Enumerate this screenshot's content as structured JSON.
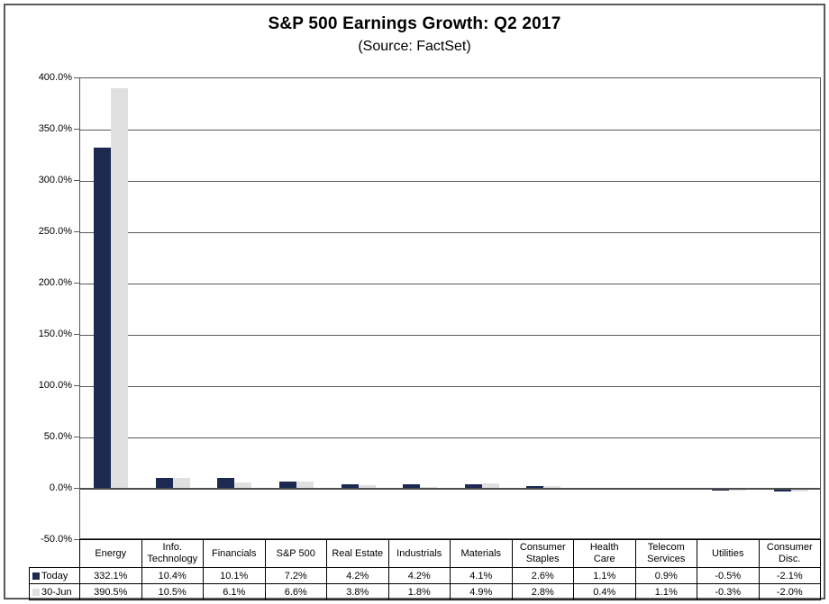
{
  "header": {
    "title": "S&P 500 Earnings Growth: Q2 2017",
    "subtitle": "(Source: FactSet)"
  },
  "colors": {
    "today_bar": "#1C2A52",
    "jun30_bar": "#E0E0E0",
    "gridline": "#595959",
    "zero_axis": "#4d4d4d",
    "table_border": "#000000",
    "frame_border": "#595959"
  },
  "chart_data": {
    "type": "bar",
    "title": "S&P 500 Earnings Growth: Q2 2017",
    "subtitle": "(Source: FactSet)",
    "categories": [
      "Energy",
      "Info. Technology",
      "Financials",
      "S&P 500",
      "Real Estate",
      "Industrials",
      "Materials",
      "Consumer Staples",
      "Health Care",
      "Telecom Services",
      "Utilities",
      "Consumer Disc."
    ],
    "series": [
      {
        "name": "Today",
        "color": "#1C2A52",
        "values": [
          332.1,
          10.4,
          10.1,
          7.2,
          4.2,
          4.2,
          4.1,
          2.6,
          1.1,
          0.9,
          -0.5,
          -2.1
        ]
      },
      {
        "name": "30-Jun",
        "color": "#E0E0E0",
        "values": [
          390.5,
          10.5,
          6.1,
          6.6,
          3.8,
          1.8,
          4.9,
          2.8,
          0.4,
          1.1,
          -0.3,
          -2.0
        ]
      }
    ],
    "ylim": [
      -50,
      400
    ],
    "ytick_step": 50,
    "ytick_labels": [
      "400.0%",
      "350.0%",
      "300.0%",
      "250.0%",
      "200.0%",
      "150.0%",
      "100.0%",
      "50.0%",
      "0.0%",
      "-50.0%"
    ],
    "grid": true,
    "legend_position": "data-table-left",
    "xlabel": "",
    "ylabel": ""
  },
  "table": {
    "header": [
      "Energy",
      "Info.\nTechnology",
      "Financials",
      "S&P 500",
      "Real Estate",
      "Industrials",
      "Materials",
      "Consumer\nStaples",
      "Health\nCare",
      "Telecom\nServices",
      "Utilities",
      "Consumer\nDisc."
    ],
    "rows": [
      {
        "legend": "Today",
        "values": [
          "332.1%",
          "10.4%",
          "10.1%",
          "7.2%",
          "4.2%",
          "4.2%",
          "4.1%",
          "2.6%",
          "1.1%",
          "0.9%",
          "-0.5%",
          "-2.1%"
        ]
      },
      {
        "legend": "30-Jun",
        "values": [
          "390.5%",
          "10.5%",
          "6.1%",
          "6.6%",
          "3.8%",
          "1.8%",
          "4.9%",
          "2.8%",
          "0.4%",
          "1.1%",
          "-0.3%",
          "-2.0%"
        ]
      }
    ]
  }
}
